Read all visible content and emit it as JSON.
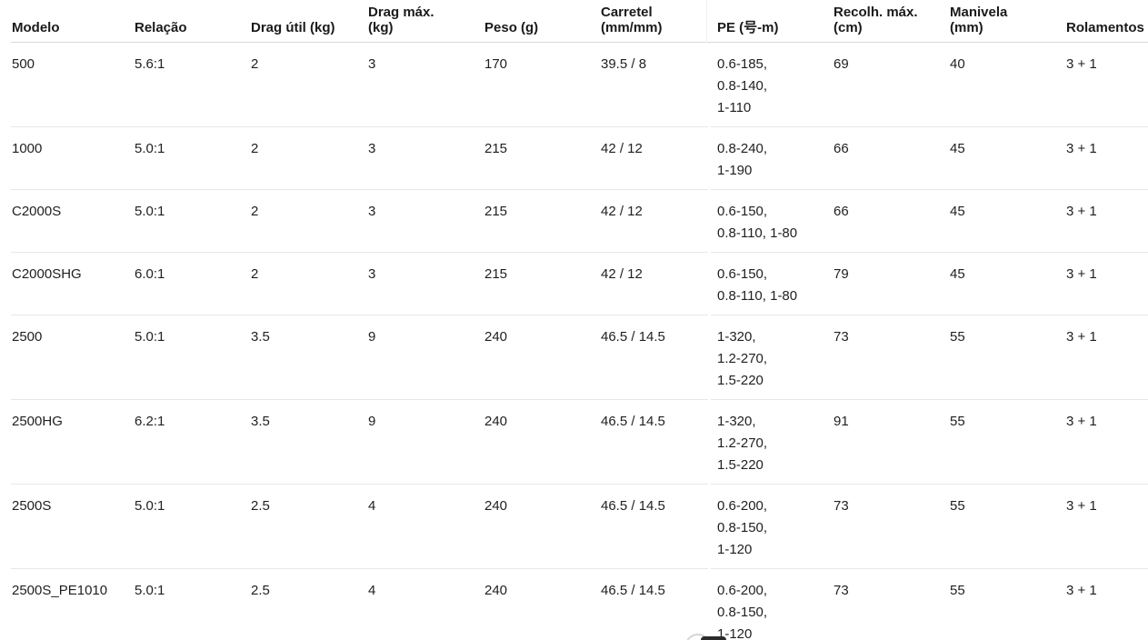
{
  "colors": {
    "background": "#ffffff",
    "text": "#1a1a1a",
    "header_divider": "#d9d9d9",
    "row_divider": "#e7e7e7"
  },
  "table": {
    "columns": [
      {
        "id": "modelo",
        "label": "Modelo",
        "label_lines": [
          "Modelo"
        ]
      },
      {
        "id": "relacao",
        "label": "Relação",
        "label_lines": [
          "Relação"
        ]
      },
      {
        "id": "drag_util",
        "label": "Drag útil (kg)",
        "label_lines": [
          "Drag útil (kg)"
        ]
      },
      {
        "id": "drag_max",
        "label": "Drag máx. (kg)",
        "label_lines": [
          "Drag máx.",
          "(kg)"
        ]
      },
      {
        "id": "peso",
        "label": "Peso (g)",
        "label_lines": [
          "Peso (g)"
        ]
      },
      {
        "id": "carretel",
        "label": "Carretel (mm/mm)",
        "label_lines": [
          "Carretel",
          "(mm/mm)"
        ]
      },
      {
        "id": "pe",
        "label": "PE (号-m)",
        "label_lines": [
          "PE (号-m)"
        ]
      },
      {
        "id": "recolh_max",
        "label": "Recolh. máx. (cm)",
        "label_lines": [
          "Recolh. máx.",
          "(cm)"
        ]
      },
      {
        "id": "manivela",
        "label": "Manivela (mm)",
        "label_lines": [
          "Manivela",
          "(mm)"
        ]
      },
      {
        "id": "rolamentos",
        "label": "Rolamentos",
        "label_lines": [
          "Rolamentos"
        ]
      }
    ],
    "rows": [
      {
        "modelo": "500",
        "relacao": "5.6:1",
        "drag_util": "2",
        "drag_max": "3",
        "peso": "170",
        "carretel": "39.5 / 8",
        "pe": [
          "0.6-185,",
          "0.8-140,",
          "1-110"
        ],
        "recolh_max": "69",
        "manivela": "40",
        "rolamentos": "3 + 1"
      },
      {
        "modelo": "1000",
        "relacao": "5.0:1",
        "drag_util": "2",
        "drag_max": "3",
        "peso": "215",
        "carretel": "42 / 12",
        "pe": [
          "0.8-240,",
          "1-190"
        ],
        "recolh_max": "66",
        "manivela": "45",
        "rolamentos": "3 + 1"
      },
      {
        "modelo": "C2000S",
        "relacao": "5.0:1",
        "drag_util": "2",
        "drag_max": "3",
        "peso": "215",
        "carretel": "42 / 12",
        "pe": [
          "0.6-150,",
          "0.8-110, 1-80"
        ],
        "recolh_max": "66",
        "manivela": "45",
        "rolamentos": "3 + 1"
      },
      {
        "modelo": "C2000SHG",
        "relacao": "6.0:1",
        "drag_util": "2",
        "drag_max": "3",
        "peso": "215",
        "carretel": "42 / 12",
        "pe": [
          "0.6-150,",
          "0.8-110, 1-80"
        ],
        "recolh_max": "79",
        "manivela": "45",
        "rolamentos": "3 + 1"
      },
      {
        "modelo": "2500",
        "relacao": "5.0:1",
        "drag_util": "3.5",
        "drag_max": "9",
        "peso": "240",
        "carretel": "46.5 / 14.5",
        "pe": [
          "1-320,",
          "1.2-270,",
          "1.5-220"
        ],
        "recolh_max": "73",
        "manivela": "55",
        "rolamentos": "3 + 1"
      },
      {
        "modelo": "2500HG",
        "relacao": "6.2:1",
        "drag_util": "3.5",
        "drag_max": "9",
        "peso": "240",
        "carretel": "46.5 / 14.5",
        "pe": [
          "1-320,",
          "1.2-270,",
          "1.5-220"
        ],
        "recolh_max": "91",
        "manivela": "55",
        "rolamentos": "3 + 1"
      },
      {
        "modelo": "2500S",
        "relacao": "5.0:1",
        "drag_util": "2.5",
        "drag_max": "4",
        "peso": "240",
        "carretel": "46.5 / 14.5",
        "pe": [
          "0.6-200,",
          "0.8-150,",
          "1-120"
        ],
        "recolh_max": "73",
        "manivela": "55",
        "rolamentos": "3 + 1"
      },
      {
        "modelo": "2500S_PE1010",
        "relacao": "5.0:1",
        "drag_util": "2.5",
        "drag_max": "4",
        "peso": "240",
        "carretel": "46.5 / 14.5",
        "pe": [
          "0.6-200,",
          "0.8-150,",
          "1-120"
        ],
        "recolh_max": "73",
        "manivela": "55",
        "rolamentos": "3 + 1"
      }
    ]
  }
}
